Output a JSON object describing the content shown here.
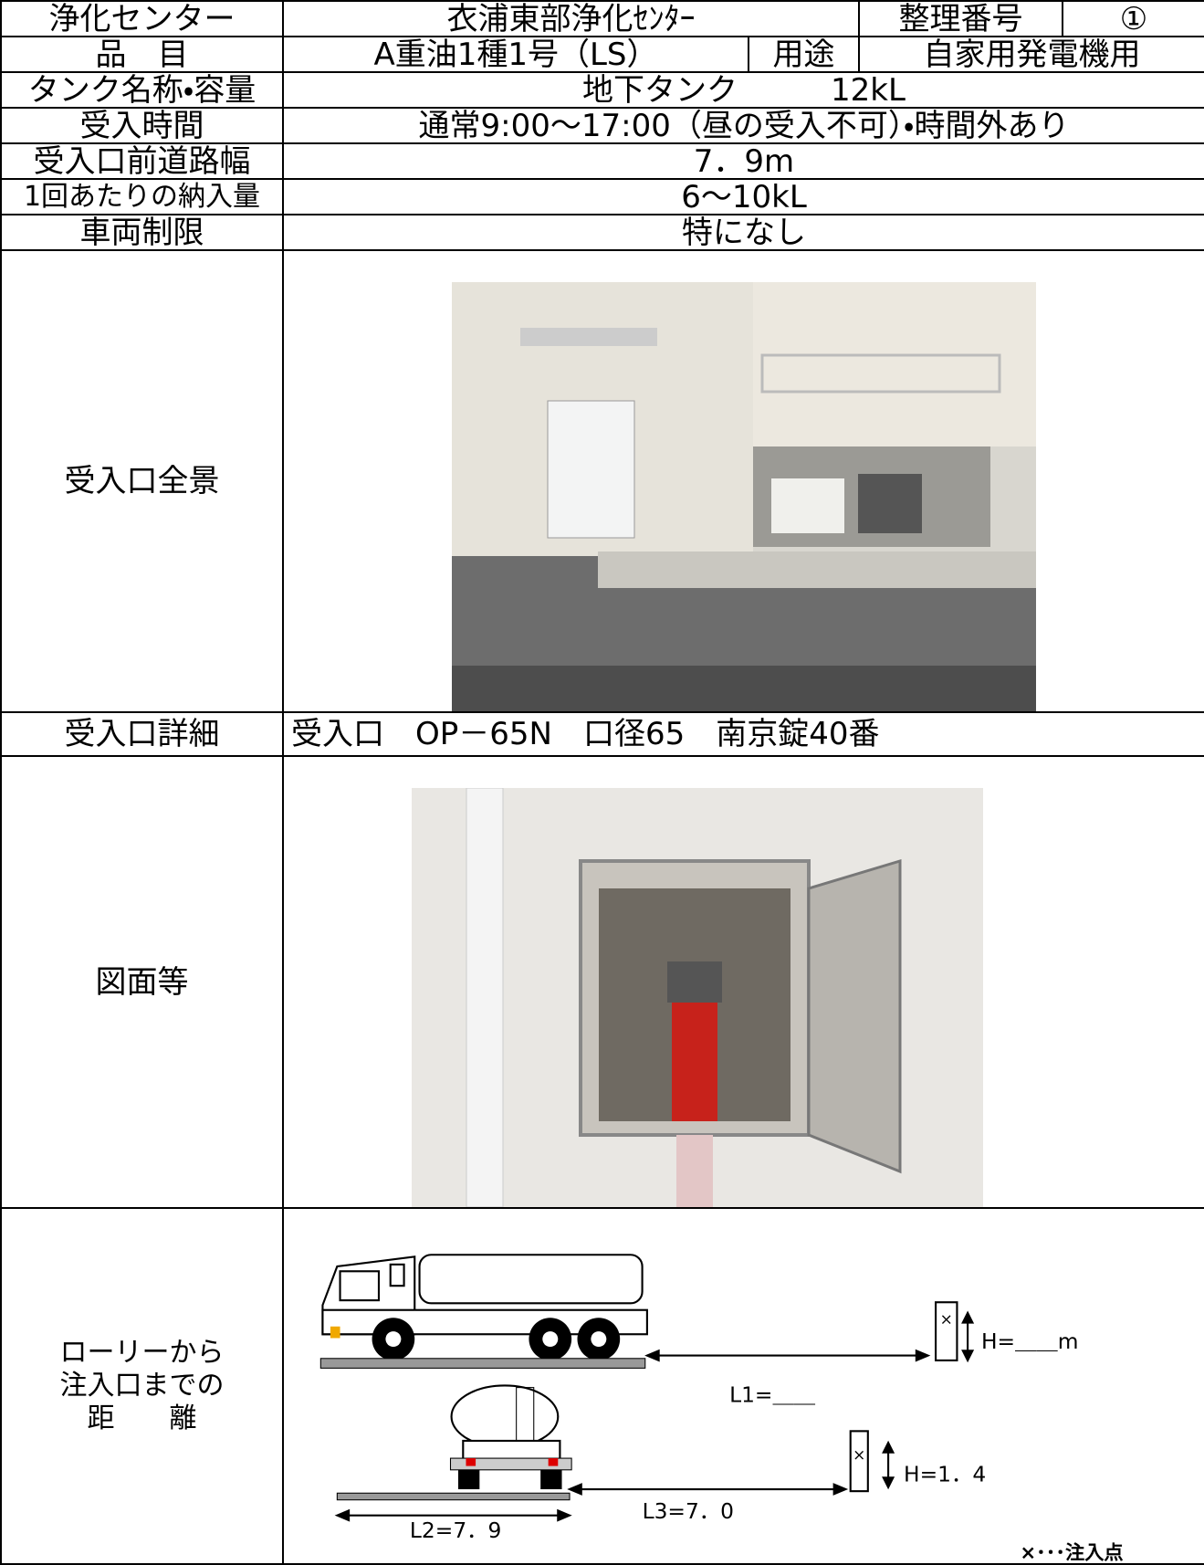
{
  "table": {
    "rows": [
      [
        "浄化センター",
        "衣浦東部浄化ｾﾝﾀｰ",
        "整理番号",
        "①"
      ],
      [
        "品　目",
        "A重油1種1号（LS）",
        "用途",
        "自家用発電機用"
      ],
      [
        "タンク名称・容量",
        "地下タンク　　　12kL"
      ],
      [
        "受入時間",
        "通常9:00～17:00（昼の受入不可）・時間外あり"
      ],
      [
        "受入口前道路幅",
        "7．9m"
      ],
      [
        "1回あたりの納入量",
        "6～10kL"
      ],
      [
        "車両制限",
        "特になし"
      ],
      [
        "受入口全景"
      ],
      [
        "受入口詳細",
        "受入口　OP－65N　口径65　南京錠40番"
      ],
      [
        "図面等"
      ],
      [
        "ローリーから\n注入口までの\n距　　離"
      ]
    ]
  },
  "diagram": {
    "h_top": "H=＿＿m",
    "l1": "L1=＿＿",
    "h_bottom": "H=1．4",
    "l2": "L2=7．9",
    "l3": "L3=7．0",
    "legend": "×･･･注入点"
  }
}
